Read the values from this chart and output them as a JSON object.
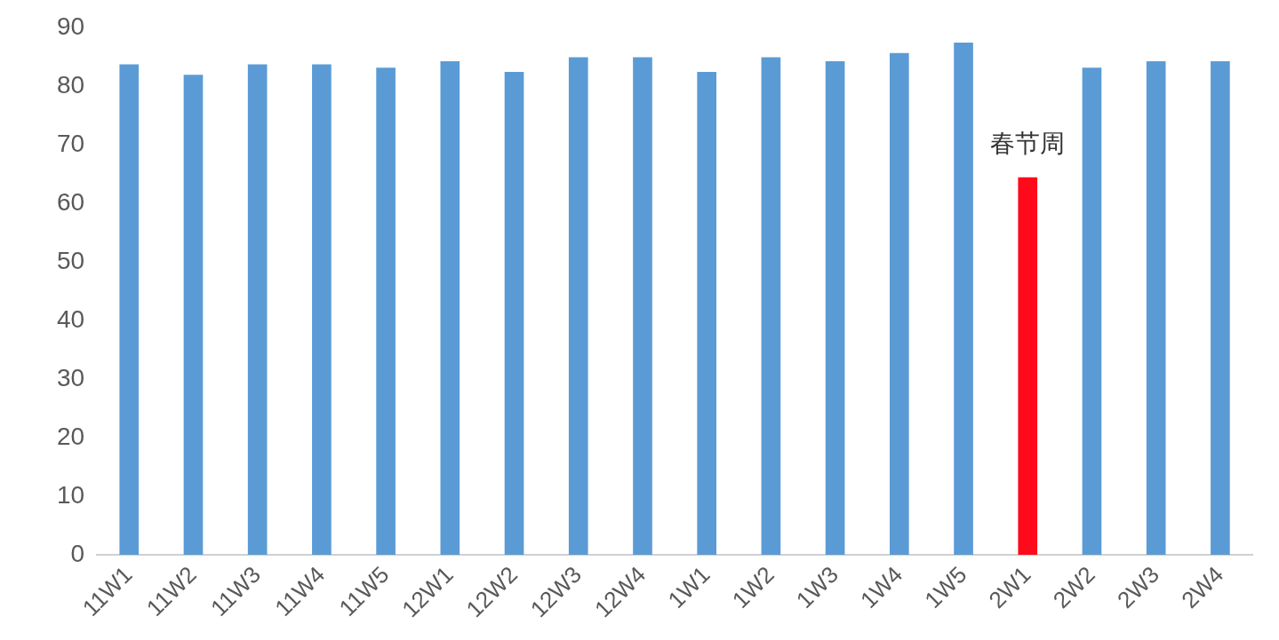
{
  "chart_data": {
    "type": "bar",
    "categories": [
      "11W1",
      "11W2",
      "11W3",
      "11W4",
      "11W5",
      "12W1",
      "12W2",
      "12W3",
      "12W4",
      "1W1",
      "1W2",
      "1W3",
      "1W4",
      "1W5",
      "2W1",
      "2W2",
      "2W3",
      "2W4"
    ],
    "values": [
      83.7,
      81.9,
      83.7,
      83.7,
      83.1,
      84.2,
      82.4,
      84.9,
      84.9,
      82.4,
      84.9,
      84.2,
      85.6,
      87.4,
      64.4,
      83.1,
      84.2,
      84.2
    ],
    "colors": [
      "#5b9bd5",
      "#5b9bd5",
      "#5b9bd5",
      "#5b9bd5",
      "#5b9bd5",
      "#5b9bd5",
      "#5b9bd5",
      "#5b9bd5",
      "#5b9bd5",
      "#5b9bd5",
      "#5b9bd5",
      "#5b9bd5",
      "#5b9bd5",
      "#5b9bd5",
      "#ff0a1a",
      "#5b9bd5",
      "#5b9bd5",
      "#5b9bd5"
    ],
    "ylim": [
      0,
      90
    ],
    "yticks": [
      0,
      10,
      20,
      30,
      40,
      50,
      60,
      70,
      80,
      90
    ],
    "grid": false,
    "legend": false,
    "annotations": [
      {
        "text": "春节周",
        "x": "2W1",
        "y": 64.4
      }
    ]
  }
}
